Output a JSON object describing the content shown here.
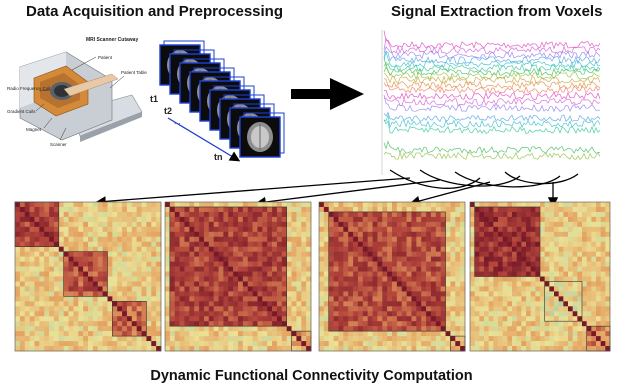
{
  "titles": {
    "left": "Data Acquisition and Preprocessing",
    "right": "Signal Extraction from Voxels",
    "bottom": "Dynamic Functional Connectivity Computation"
  },
  "scanner": {
    "heading": "MRI Scanner Cutaway",
    "parts": [
      "Patient",
      "Radio Frequency Coil",
      "Patient Table",
      "Gradient Coils",
      "Magnet",
      "Scanner"
    ]
  },
  "timepoints": {
    "labels": [
      "t1",
      "t2",
      "...",
      "tn"
    ]
  },
  "colors": {
    "volume_border": "#1e3fd6",
    "arrow": "#000000",
    "signal_lines": [
      "#e23fbf",
      "#d25ad6",
      "#8d7df0",
      "#4fa0e8",
      "#2fc0c8",
      "#2ec69a",
      "#3fba5a",
      "#8cbf3a",
      "#c9a23a",
      "#e0893a",
      "#f07a5a"
    ],
    "heatmap_low": "#2b7fb8",
    "heatmap_high": "#8b1a2a"
  }
}
